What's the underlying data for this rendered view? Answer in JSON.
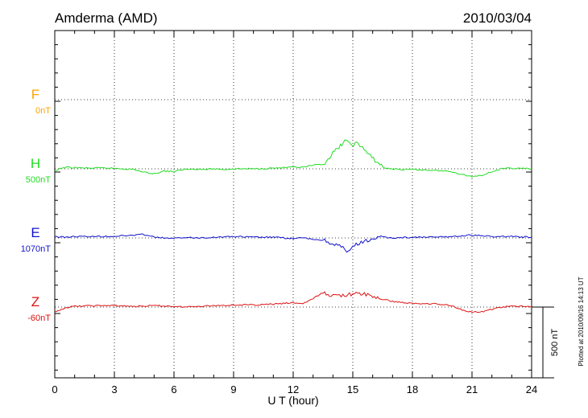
{
  "chart_data": {
    "type": "line",
    "title": "Amderma (AMD)",
    "date": "2010/03/04",
    "xlabel": "U T (hour)",
    "xlim": [
      0,
      24
    ],
    "xticks": [
      "0",
      "3",
      "6",
      "9",
      "12",
      "15",
      "18",
      "21",
      "24"
    ],
    "grid": true,
    "scale_bar_label": "500 nT",
    "footnote": "Plotted at 2010/09/16 14:13 UT",
    "series": [
      {
        "name": "F",
        "baseline": "0nT",
        "color": "#ffa500",
        "points": []
      },
      {
        "name": "H",
        "baseline": "500nT",
        "color": "#22dd22",
        "points": [
          [
            0,
            -20
          ],
          [
            0.25,
            0
          ],
          [
            0.5,
            10
          ],
          [
            1,
            8
          ],
          [
            1.5,
            5
          ],
          [
            2,
            5
          ],
          [
            2.5,
            5
          ],
          [
            3,
            4
          ],
          [
            3.5,
            0
          ],
          [
            4,
            -5
          ],
          [
            4.5,
            -25
          ],
          [
            5,
            -35
          ],
          [
            5.5,
            -15
          ],
          [
            6,
            -20
          ],
          [
            6.5,
            -5
          ],
          [
            7,
            0
          ],
          [
            7.5,
            -5
          ],
          [
            8,
            0
          ],
          [
            8.5,
            -5
          ],
          [
            9,
            0
          ],
          [
            10,
            0
          ],
          [
            11,
            5
          ],
          [
            12,
            10
          ],
          [
            12.5,
            10
          ],
          [
            13,
            25
          ],
          [
            13.5,
            30
          ],
          [
            14,
            110
          ],
          [
            14.3,
            150
          ],
          [
            14.6,
            200
          ],
          [
            14.9,
            170
          ],
          [
            15.2,
            180
          ],
          [
            15.5,
            150
          ],
          [
            15.8,
            100
          ],
          [
            16.2,
            50
          ],
          [
            16.6,
            5
          ],
          [
            17,
            0
          ],
          [
            17.5,
            -5
          ],
          [
            18,
            -5
          ],
          [
            19,
            -10
          ],
          [
            20,
            -20
          ],
          [
            20.5,
            -40
          ],
          [
            21,
            -55
          ],
          [
            21.5,
            -45
          ],
          [
            22,
            -20
          ],
          [
            22.5,
            0
          ],
          [
            23,
            5
          ],
          [
            24,
            0
          ]
        ]
      },
      {
        "name": "E",
        "baseline": "1070nT",
        "color": "#1111cc",
        "points": [
          [
            0,
            10
          ],
          [
            0.5,
            5
          ],
          [
            1,
            10
          ],
          [
            2,
            10
          ],
          [
            3,
            12
          ],
          [
            4,
            20
          ],
          [
            4.5,
            25
          ],
          [
            5,
            5
          ],
          [
            5.5,
            0
          ],
          [
            6,
            -5
          ],
          [
            6.5,
            5
          ],
          [
            7,
            0
          ],
          [
            8,
            5
          ],
          [
            9,
            10
          ],
          [
            10,
            5
          ],
          [
            11,
            5
          ],
          [
            12,
            -5
          ],
          [
            12.5,
            0
          ],
          [
            13,
            -10
          ],
          [
            13.5,
            -15
          ],
          [
            14,
            -40
          ],
          [
            14.5,
            -70
          ],
          [
            14.7,
            -110
          ],
          [
            15,
            -60
          ],
          [
            15.5,
            -30
          ],
          [
            16,
            -5
          ],
          [
            16.5,
            5
          ],
          [
            17,
            0
          ],
          [
            18,
            5
          ],
          [
            19,
            5
          ],
          [
            20,
            10
          ],
          [
            20.5,
            15
          ],
          [
            21,
            20
          ],
          [
            21.5,
            15
          ],
          [
            22,
            10
          ],
          [
            23,
            10
          ],
          [
            24,
            5
          ]
        ]
      },
      {
        "name": "Z",
        "baseline": "-60nT",
        "color": "#dd1111",
        "points": [
          [
            0,
            -40
          ],
          [
            0.5,
            -5
          ],
          [
            1,
            5
          ],
          [
            2,
            10
          ],
          [
            3,
            10
          ],
          [
            4,
            5
          ],
          [
            5,
            10
          ],
          [
            6,
            5
          ],
          [
            6.5,
            0
          ],
          [
            7,
            5
          ],
          [
            8,
            10
          ],
          [
            9,
            15
          ],
          [
            10,
            15
          ],
          [
            11,
            20
          ],
          [
            12,
            30
          ],
          [
            12.5,
            25
          ],
          [
            13,
            60
          ],
          [
            13.5,
            100
          ],
          [
            14,
            80
          ],
          [
            14.5,
            85
          ],
          [
            15,
            90
          ],
          [
            15.5,
            95
          ],
          [
            16,
            75
          ],
          [
            16.5,
            55
          ],
          [
            17,
            40
          ],
          [
            18,
            25
          ],
          [
            19,
            25
          ],
          [
            20,
            10
          ],
          [
            20.5,
            -20
          ],
          [
            21,
            -35
          ],
          [
            21.5,
            -35
          ],
          [
            22,
            -15
          ],
          [
            22.5,
            0
          ],
          [
            23,
            5
          ],
          [
            24,
            5
          ]
        ]
      }
    ]
  }
}
